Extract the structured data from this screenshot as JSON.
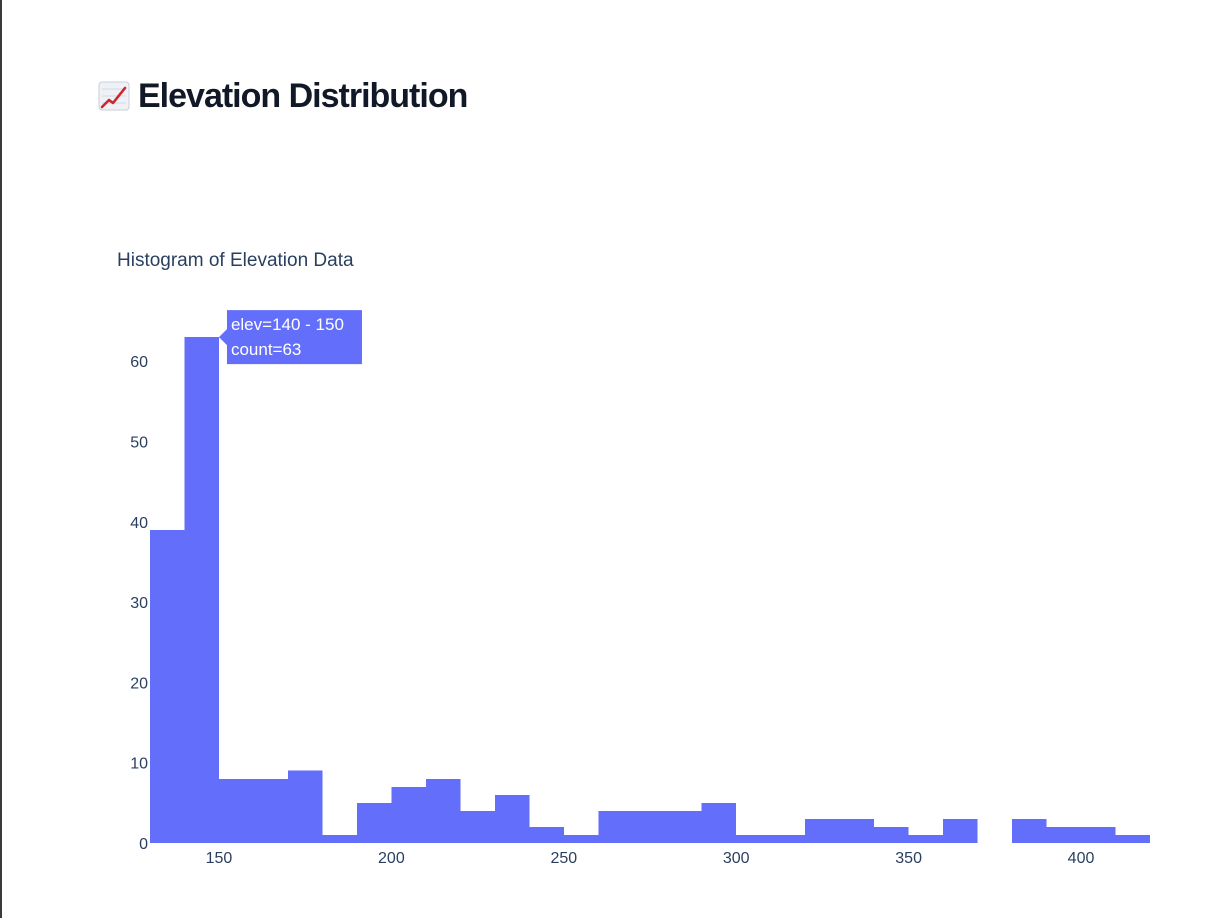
{
  "header": {
    "title": "Elevation Distribution",
    "icon": "chart-increasing-icon"
  },
  "colors": {
    "bar": "#636efa",
    "axis_text": "#2a3f5f",
    "tooltip_bg": "#636efa",
    "tooltip_text": "#ffffff"
  },
  "chart_data": {
    "type": "bar",
    "title": "Histogram of Elevation Data",
    "xlabel": "",
    "ylabel": "",
    "bin_size": 10,
    "bin_start": 130,
    "values": [
      39,
      63,
      8,
      8,
      9,
      1,
      5,
      7,
      8,
      4,
      6,
      2,
      1,
      4,
      4,
      4,
      5,
      1,
      1,
      3,
      3,
      2,
      1,
      3,
      0,
      3,
      2,
      2,
      1
    ],
    "xlim": [
      130,
      420
    ],
    "ylim": [
      0,
      66
    ],
    "x_ticks": [
      150,
      200,
      250,
      300,
      350,
      400
    ],
    "y_ticks": [
      0,
      10,
      20,
      30,
      40,
      50,
      60
    ],
    "grid": false,
    "tooltip": {
      "line1": "elev=140 - 150",
      "line2": "count=63",
      "bin_index": 1
    }
  }
}
